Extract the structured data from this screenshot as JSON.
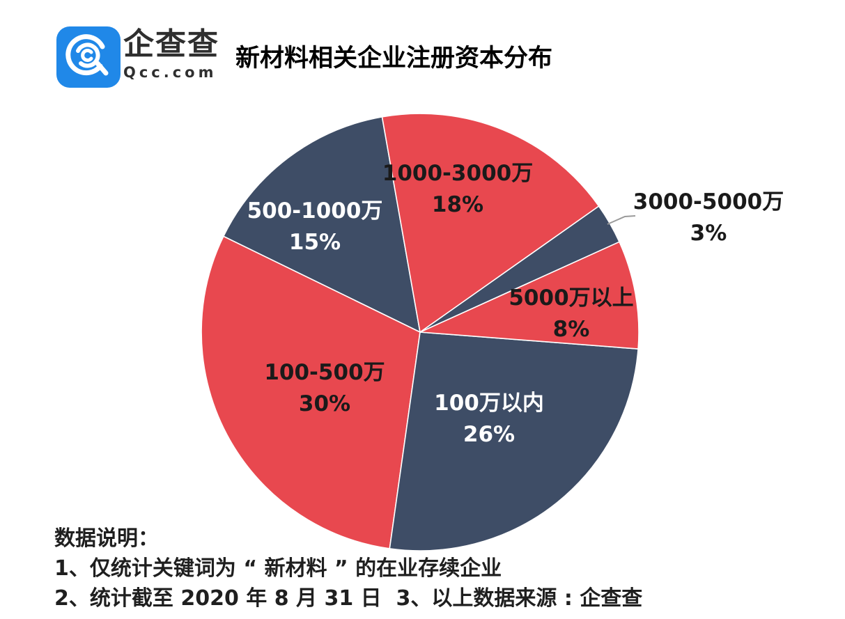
{
  "header": {
    "logo": {
      "brand_cn": "企查查",
      "brand_en": "Qcc.com",
      "brand_color": "#2088E8"
    },
    "title": "新材料相关企业注册资本分布"
  },
  "chart_data": {
    "type": "pie",
    "title": "新材料相关企业注册资本分布",
    "unit": "percent",
    "direction": "clockwise",
    "start_angle_deg_from_top": -10,
    "legend": "none",
    "palette": {
      "red": "#E8484F",
      "navy": "#3E4D66"
    },
    "slices": [
      {
        "label": "1000-3000万",
        "value": 18,
        "pct": "18%",
        "color": "#E8484F",
        "text_color": "#1a1a1a",
        "label_placement": "inside"
      },
      {
        "label": "3000-5000万",
        "value": 3,
        "pct": "3%",
        "color": "#3E4D66",
        "text_color": "#1a1a1a",
        "label_placement": "outside-with-leader-line"
      },
      {
        "label": "5000万以上",
        "value": 8,
        "pct": "8%",
        "color": "#E8484F",
        "text_color": "#1a1a1a",
        "label_placement": "inside"
      },
      {
        "label": "100万以内",
        "value": 26,
        "pct": "26%",
        "color": "#3E4D66",
        "text_color": "#ffffff",
        "label_placement": "inside"
      },
      {
        "label": "100-500万",
        "value": 30,
        "pct": "30%",
        "color": "#E8484F",
        "text_color": "#1a1a1a",
        "label_placement": "inside"
      },
      {
        "label": "500-1000万",
        "value": 15,
        "pct": "15%",
        "color": "#3E4D66",
        "text_color": "#ffffff",
        "label_placement": "inside"
      }
    ]
  },
  "notes": {
    "heading": "数据说明：",
    "line1": "1、仅统计关键词为 “ 新材料 ” 的在业存续企业",
    "line2": "2、统计截至 2020 年 8 月 31 日  3、以上数据来源 : 企查查"
  }
}
